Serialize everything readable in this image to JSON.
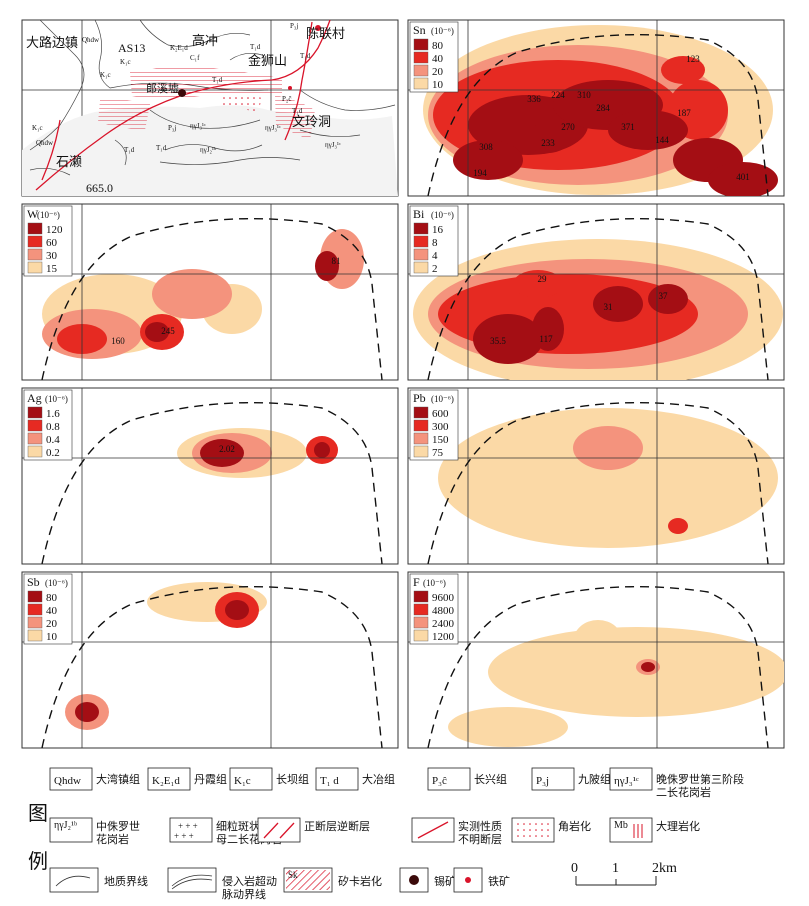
{
  "colors": {
    "c1": "#fbd9a6",
    "c2": "#f4937d",
    "c3": "#e62a22",
    "c4": "#a40e14",
    "geo_line": "#333333",
    "fault": "#d9142a",
    "bg": "#ffffff"
  },
  "geology": {
    "places": [
      "大路边镇",
      "AS13",
      "高冲",
      "陈联村",
      "金狮山",
      "郎溪墟",
      "文玲洞",
      "石濑"
    ],
    "codes": [
      "Qhdw",
      "K₂E₁d",
      "C₁f",
      "T₁d",
      "P₃j",
      "K₁c",
      "T₁d",
      "P₂ĉ",
      "T₁d",
      "K₁c",
      "Qhdw",
      "T₁d",
      "T₁d",
      "P₃j",
      "ηγJ₃¹ᶜ",
      "ηγJ₂¹ᵇ",
      "ηγJ₃¹ᶜ",
      "ηγJ₃¹ᶜ",
      "T₁d",
      "K₁c"
    ],
    "elevation": "665.0"
  },
  "panels": [
    {
      "element": "Sn",
      "unit": "(10⁻⁶)",
      "legend": [
        "80",
        "40",
        "20",
        "10"
      ],
      "labels": [
        "123",
        "336",
        "224",
        "310",
        "284",
        "187",
        "270",
        "371",
        "308",
        "233",
        "144",
        "194",
        "401"
      ]
    },
    {
      "element": "W",
      "unit": "(10⁻⁶)",
      "legend": [
        "120",
        "60",
        "30",
        "15"
      ],
      "labels": [
        "81",
        "160",
        "245"
      ]
    },
    {
      "element": "Bi",
      "unit": "(10⁻⁶)",
      "legend": [
        "16",
        "8",
        "4",
        "2"
      ],
      "labels": [
        "29",
        "31",
        "37",
        "35.5",
        "117"
      ]
    },
    {
      "element": "Ag",
      "unit": "(10⁻⁶)",
      "legend": [
        "1.6",
        "0.8",
        "0.4",
        "0.2"
      ],
      "labels": [
        "2.02"
      ]
    },
    {
      "element": "Pb",
      "unit": "(10⁻⁶)",
      "legend": [
        "600",
        "300",
        "150",
        "75"
      ],
      "labels": []
    },
    {
      "element": "Sb",
      "unit": "(10⁻⁶)",
      "legend": [
        "80",
        "40",
        "20",
        "10"
      ],
      "labels": []
    },
    {
      "element": "F",
      "unit": "(10⁻⁶)",
      "legend": [
        "9600",
        "4800",
        "2400",
        "1200"
      ],
      "labels": []
    }
  ],
  "legend": {
    "title_top": "图",
    "title_bottom": "例",
    "row1": [
      {
        "code": "Qhdw",
        "text": "大湾镇组"
      },
      {
        "code": "K₂E₁d",
        "text": "丹霞组"
      },
      {
        "code": "K₁c",
        "text": "长坝组"
      },
      {
        "code": "T₁ d",
        "text": "大冶组"
      },
      {
        "code": "P₃ĉ",
        "text": "长兴组"
      },
      {
        "code": "P₃j",
        "text": "九陂组"
      },
      {
        "code": "ηγJ₃¹ᶜ",
        "text": "晚侏罗世第三阶段",
        "text2": "二长花岗岩"
      }
    ],
    "row2": [
      {
        "code": "ηγJ₂¹ᵇ",
        "text": "中侏罗世",
        "text2": "花岗岩"
      },
      {
        "text": "细粒斑状黑云",
        "text2": "母二长花岗岩"
      },
      {
        "text": "正断层逆断层"
      },
      {
        "text": "实测性质",
        "text2": "不明断层"
      },
      {
        "text": "角岩化"
      },
      {
        "text": "大理岩化",
        "code": "Mb"
      }
    ],
    "row3": [
      {
        "text": "地质界线"
      },
      {
        "text": "侵入岩超动",
        "text2": "脉动界线"
      },
      {
        "text": "矽卡岩化",
        "code": "Sk"
      },
      {
        "text": "锡矿"
      },
      {
        "text": "铁矿"
      }
    ],
    "scale": {
      "labels": [
        "0",
        "1",
        "2km"
      ]
    }
  }
}
